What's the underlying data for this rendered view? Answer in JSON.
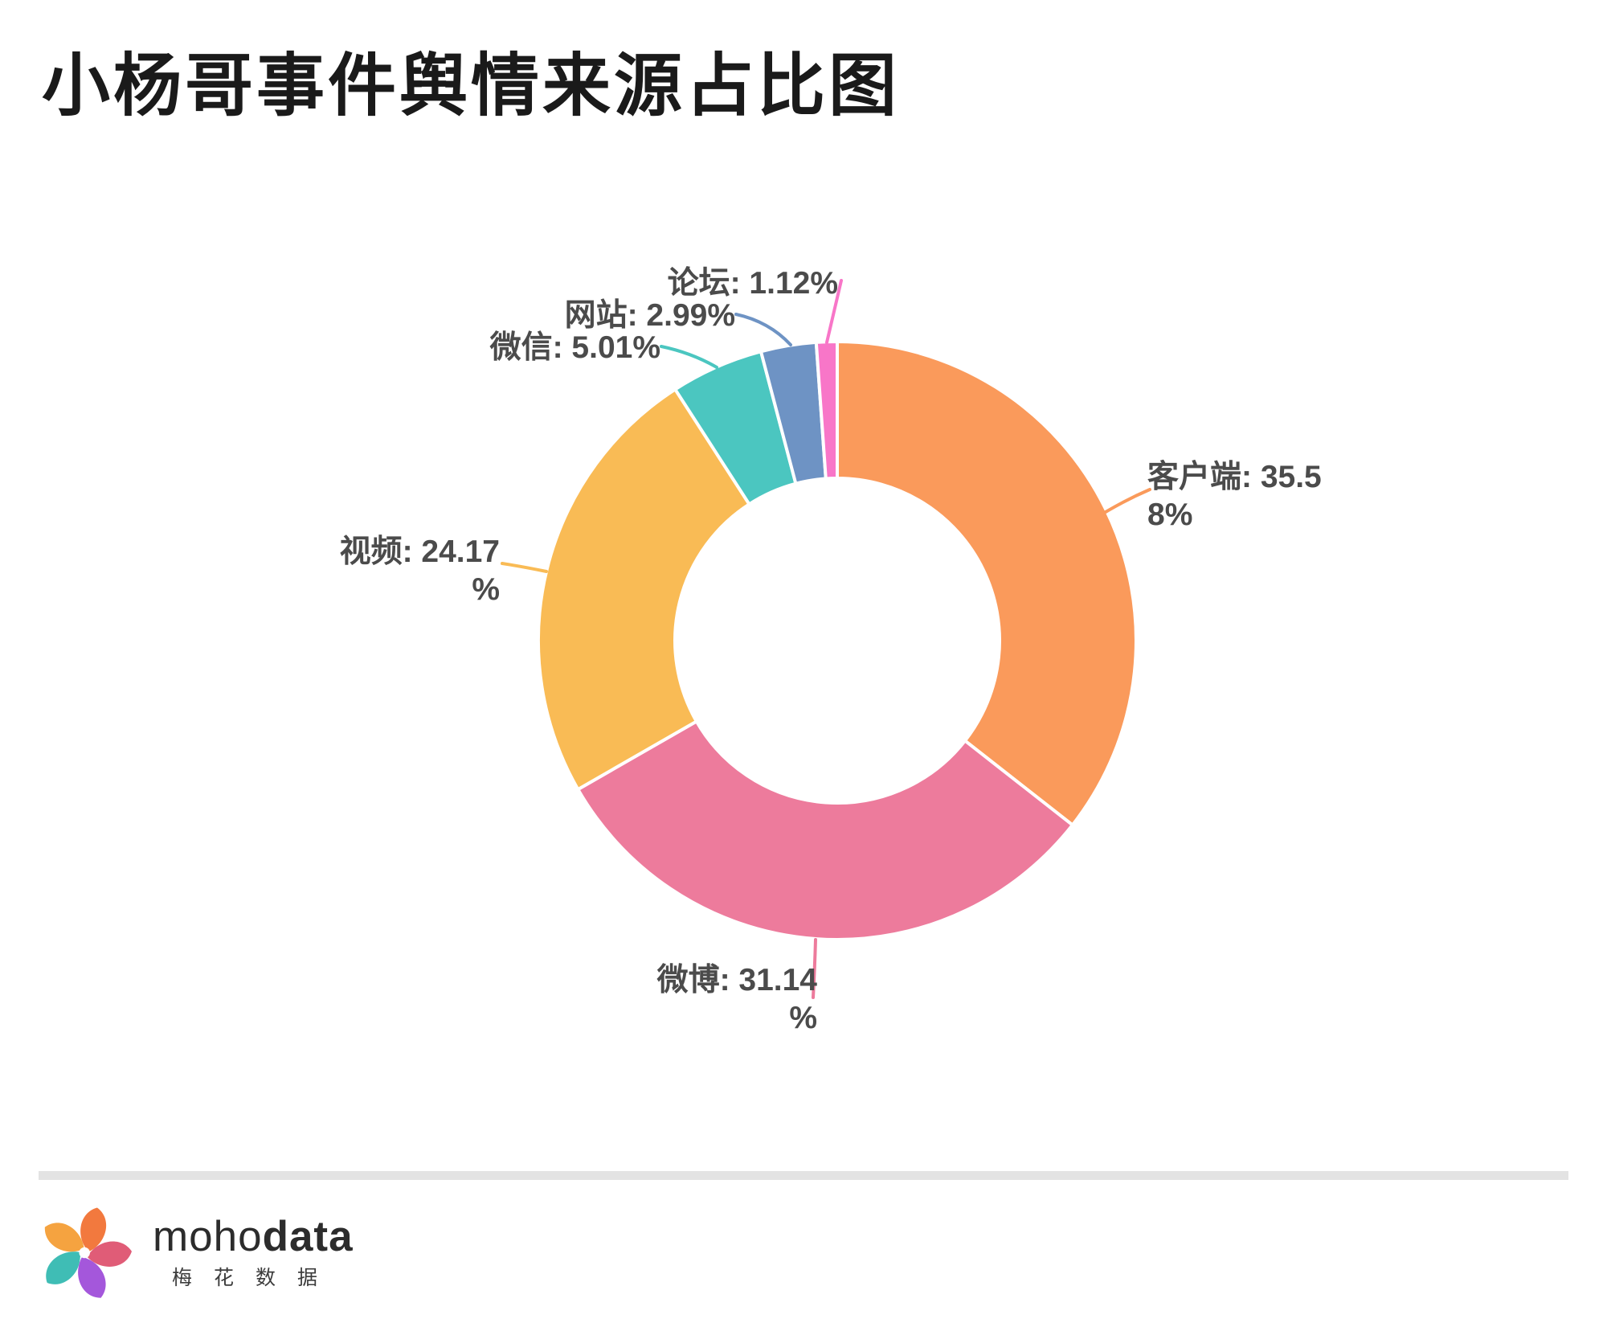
{
  "page": {
    "background": "#ffffff"
  },
  "chart_data": {
    "type": "pie",
    "subtype": "donut",
    "title": "小杨哥事件舆情来源占比图",
    "legend_position": "none",
    "start_angle_deg": 0,
    "start_position": "top",
    "direction": "clockwise",
    "inner_radius_ratio": 0.54,
    "units": "%",
    "series": [
      {
        "name": "客户端",
        "value": 35.58,
        "label_text": "客户端: 35.58%",
        "label_lines": [
          "客户端: 35.5",
          "8%"
        ],
        "color": "#FA9A5B"
      },
      {
        "name": "微博",
        "value": 31.14,
        "label_text": "微博: 31.14%",
        "label_lines": [
          "微博: 31.14",
          "%"
        ],
        "color": "#ED7B9C"
      },
      {
        "name": "视频",
        "value": 24.17,
        "label_text": "视频: 24.17%",
        "label_lines": [
          "视频: 24.17",
          "%"
        ],
        "color": "#F9BB55"
      },
      {
        "name": "微信",
        "value": 5.01,
        "label_text": "微信: 5.01%",
        "label_lines": [
          "微信: 5.01%"
        ],
        "color": "#4BC6C0"
      },
      {
        "name": "网站",
        "value": 2.99,
        "label_text": "网站: 2.99%",
        "label_lines": [
          "网站: 2.99%"
        ],
        "color": "#6E93C4"
      },
      {
        "name": "论坛",
        "value": 1.12,
        "label_text": "论坛: 1.12%",
        "label_lines": [
          "论坛: 1.12%"
        ],
        "color": "#F876C8"
      }
    ]
  },
  "footer": {
    "logo_icon": "pinwheel",
    "logo_colors": [
      "#F2793E",
      "#E05C77",
      "#A457DB",
      "#3FBDB5",
      "#F5A340"
    ],
    "brand_latin_light": "moho",
    "brand_latin_bold": "data",
    "brand_cjk": "梅花数据"
  },
  "colors": {
    "title_text": "#1a1a1a",
    "label_text": "#4b4b4b",
    "divider": "#e3e3e3",
    "slice_gap": "#ffffff"
  }
}
